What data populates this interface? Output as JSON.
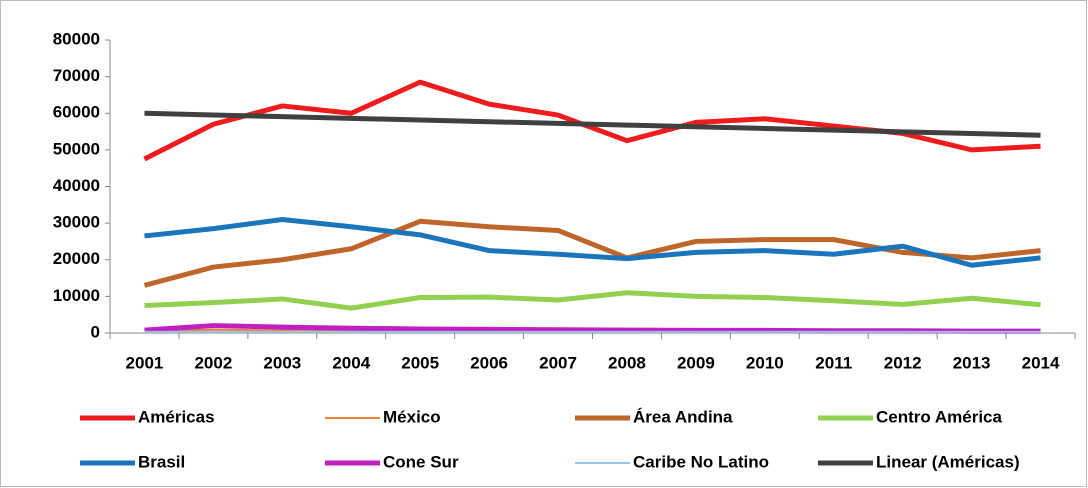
{
  "chart_data": {
    "type": "line",
    "categories": [
      "2001",
      "2002",
      "2003",
      "2004",
      "2005",
      "2006",
      "2007",
      "2008",
      "2009",
      "2010",
      "2011",
      "2012",
      "2013",
      "2014"
    ],
    "ylim": [
      0,
      80000
    ],
    "yticks": [
      0,
      10000,
      20000,
      30000,
      40000,
      50000,
      60000,
      70000,
      80000
    ],
    "grid": false,
    "series": [
      {
        "name": "Américas",
        "color": "#ee1c1c",
        "line_width": 5,
        "values": [
          47500,
          57000,
          62000,
          60000,
          68500,
          62500,
          59500,
          52500,
          57500,
          58500,
          56500,
          54500,
          50000,
          51000
        ]
      },
      {
        "name": "México",
        "color": "#e8842f",
        "line_width": 2,
        "values": [
          500,
          900,
          700,
          600,
          600,
          500,
          500,
          500,
          400,
          400,
          400,
          400,
          700,
          400
        ]
      },
      {
        "name": "Área Andina",
        "color": "#c0652a",
        "line_width": 5,
        "values": [
          13000,
          18000,
          20000,
          23000,
          30500,
          29000,
          28000,
          20500,
          25000,
          25500,
          25500,
          22000,
          20500,
          22500
        ]
      },
      {
        "name": "Centro América",
        "color": "#92d050",
        "line_width": 5,
        "values": [
          7500,
          8300,
          9300,
          6800,
          9700,
          9800,
          9000,
          11000,
          10000,
          9700,
          8800,
          7800,
          9500,
          7700
        ]
      },
      {
        "name": "Brasil",
        "color": "#1b75bc",
        "line_width": 5,
        "values": [
          26500,
          28500,
          31000,
          29000,
          26800,
          22500,
          21500,
          20300,
          22000,
          22500,
          21500,
          23700,
          18500,
          20500
        ]
      },
      {
        "name": "Cone Sur",
        "color": "#c020c0",
        "line_width": 5,
        "values": [
          800,
          2000,
          1600,
          1300,
          1100,
          1000,
          900,
          800,
          700,
          700,
          600,
          600,
          500,
          500
        ]
      },
      {
        "name": "Caribe No Latino",
        "color": "#9dc3e6",
        "line_width": 2,
        "values": [
          300,
          300,
          300,
          300,
          300,
          300,
          300,
          300,
          300,
          300,
          300,
          300,
          300,
          300
        ]
      },
      {
        "name": "Linear (Américas)",
        "color": "#404040",
        "line_width": 5,
        "values": [
          60000,
          59538,
          59077,
          58615,
          58154,
          57692,
          57231,
          56769,
          56308,
          55846,
          55385,
          54923,
          54462,
          54000
        ]
      }
    ]
  }
}
